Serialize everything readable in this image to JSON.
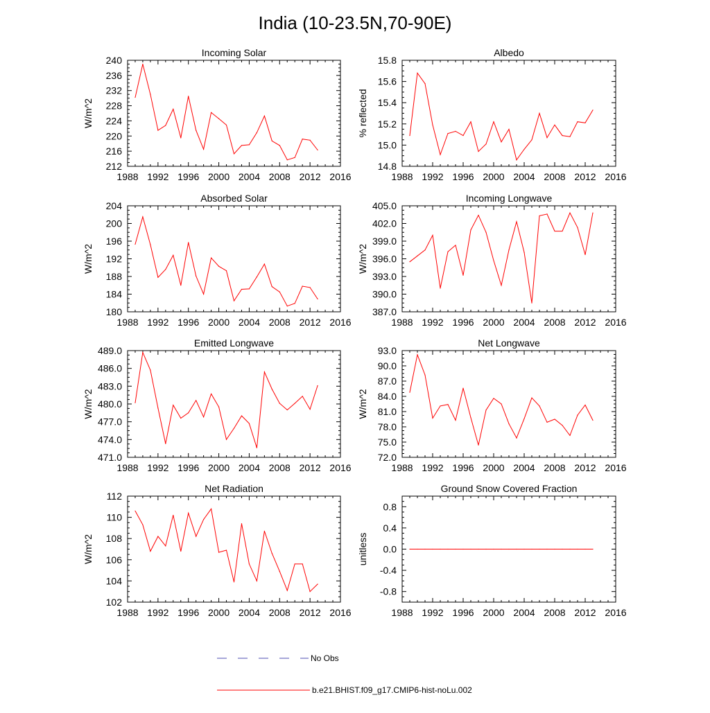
{
  "figure_title": "India (10-23.5N,70-90E)",
  "colors": {
    "model": "#ff0000",
    "obs": "#4d4db3",
    "axis": "#000000"
  },
  "legend": {
    "placement": "bottom-center",
    "entries": [
      {
        "label": "No Obs",
        "style": "dashed",
        "color": "#4d4db3"
      },
      {
        "label": "b.e21.BHIST.f09_g17.CMIP6-hist-noLu.002",
        "style": "solid",
        "color": "#ff0000"
      }
    ]
  },
  "chart_data": [
    {
      "type": "line",
      "title": "Incoming Solar",
      "ylabel": "W/m^2",
      "xlim": [
        1988,
        2016
      ],
      "xticks": [
        1988,
        1992,
        1996,
        2000,
        2004,
        2008,
        2012,
        2016
      ],
      "ylim": [
        212,
        240
      ],
      "yticks": [
        "212",
        "216",
        "220",
        "224",
        "228",
        "232",
        "236",
        "240"
      ],
      "series": [
        {
          "x": [
            1989,
            1990,
            1991,
            1992,
            1993,
            1994,
            1995,
            1996,
            1997,
            1998,
            1999,
            2000,
            2001,
            2002,
            2003,
            2004,
            2005,
            2006,
            2007,
            2008,
            2009,
            2010,
            2011,
            2012,
            2013
          ],
          "values": [
            230.2,
            239.0,
            231.0,
            221.5,
            222.8,
            227.1,
            219.5,
            230.5,
            221.5,
            216.5,
            226.2,
            224.6,
            222.9,
            215.3,
            217.5,
            217.7,
            220.9,
            225.3,
            218.7,
            217.5,
            213.7,
            214.3,
            219.2,
            218.9,
            216.3
          ]
        }
      ]
    },
    {
      "type": "line",
      "title": "Albedo",
      "ylabel": "% reflected",
      "xlim": [
        1988,
        2016
      ],
      "xticks": [
        1988,
        1992,
        1996,
        2000,
        2004,
        2008,
        2012,
        2016
      ],
      "ylim": [
        14.8,
        15.8
      ],
      "yticks": [
        "14.8",
        "15.0",
        "15.2",
        "15.4",
        "15.6",
        "15.8"
      ],
      "series": [
        {
          "x": [
            1989,
            1990,
            1991,
            1992,
            1993,
            1994,
            1995,
            1996,
            1997,
            1998,
            1999,
            2000,
            2001,
            2002,
            2003,
            2004,
            2005,
            2006,
            2007,
            2008,
            2009,
            2010,
            2011,
            2012,
            2013
          ],
          "values": [
            15.09,
            15.68,
            15.58,
            15.19,
            14.91,
            15.11,
            15.13,
            15.09,
            15.22,
            14.94,
            15.01,
            15.22,
            15.03,
            15.15,
            14.86,
            14.96,
            15.05,
            15.3,
            15.07,
            15.19,
            15.09,
            15.08,
            15.22,
            15.21,
            15.33
          ]
        }
      ]
    },
    {
      "type": "line",
      "title": "Absorbed Solar",
      "ylabel": "W/m^2",
      "xlim": [
        1988,
        2016
      ],
      "xticks": [
        1988,
        1992,
        1996,
        2000,
        2004,
        2008,
        2012,
        2016
      ],
      "ylim": [
        180,
        204
      ],
      "yticks": [
        "180",
        "184",
        "188",
        "192",
        "196",
        "200",
        "204"
      ],
      "series": [
        {
          "x": [
            1989,
            1990,
            1991,
            1992,
            1993,
            1994,
            1995,
            1996,
            1997,
            1998,
            1999,
            2000,
            2001,
            2002,
            2003,
            2004,
            2005,
            2006,
            2007,
            2008,
            2009,
            2010,
            2011,
            2012,
            2013
          ],
          "values": [
            195.3,
            201.5,
            195.2,
            187.8,
            189.6,
            192.8,
            186.0,
            195.7,
            188.1,
            184.0,
            192.2,
            190.3,
            189.3,
            182.5,
            185.1,
            185.2,
            187.9,
            190.8,
            185.7,
            184.5,
            181.3,
            181.9,
            185.8,
            185.5,
            182.9
          ]
        }
      ]
    },
    {
      "type": "line",
      "title": "Incoming Longwave",
      "ylabel": "W/m^2",
      "xlim": [
        1988,
        2016
      ],
      "xticks": [
        1988,
        1992,
        1996,
        2000,
        2004,
        2008,
        2012,
        2016
      ],
      "ylim": [
        387.0,
        405.0
      ],
      "yticks": [
        "387.0",
        "390.0",
        "393.0",
        "396.0",
        "399.0",
        "402.0",
        "405.0"
      ],
      "series": [
        {
          "x": [
            1989,
            1990,
            1991,
            1992,
            1993,
            1994,
            1995,
            1996,
            1997,
            1998,
            1999,
            2000,
            2001,
            2002,
            2003,
            2004,
            2005,
            2006,
            2007,
            2008,
            2009,
            2010,
            2011,
            2012,
            2013
          ],
          "values": [
            395.5,
            396.5,
            397.5,
            400.0,
            391.0,
            397.2,
            398.3,
            393.2,
            400.9,
            403.4,
            400.5,
            395.7,
            391.5,
            397.5,
            402.3,
            397.1,
            388.5,
            403.3,
            403.6,
            400.7,
            400.7,
            403.8,
            401.3,
            396.7,
            403.8
          ]
        }
      ]
    },
    {
      "type": "line",
      "title": "Emitted Longwave",
      "ylabel": "W/m^2",
      "xlim": [
        1988,
        2016
      ],
      "xticks": [
        1988,
        1992,
        1996,
        2000,
        2004,
        2008,
        2012,
        2016
      ],
      "ylim": [
        471.0,
        489.0
      ],
      "yticks": [
        "471.0",
        "474.0",
        "477.0",
        "480.0",
        "483.0",
        "486.0",
        "489.0"
      ],
      "series": [
        {
          "x": [
            1989,
            1990,
            1991,
            1992,
            1993,
            1994,
            1995,
            1996,
            1997,
            1998,
            1999,
            2000,
            2001,
            2002,
            2003,
            2004,
            2005,
            2006,
            2007,
            2008,
            2009,
            2010,
            2011,
            2012,
            2013
          ],
          "values": [
            480.2,
            488.7,
            485.7,
            479.3,
            473.3,
            479.8,
            477.6,
            478.5,
            480.6,
            477.8,
            481.7,
            479.5,
            474.0,
            475.9,
            478.0,
            476.7,
            472.6,
            485.4,
            482.5,
            480.1,
            479.0,
            480.1,
            481.3,
            479.1,
            483.1
          ]
        }
      ]
    },
    {
      "type": "line",
      "title": "Net Longwave",
      "ylabel": "W/m^2",
      "xlim": [
        1988,
        2016
      ],
      "xticks": [
        1988,
        1992,
        1996,
        2000,
        2004,
        2008,
        2012,
        2016
      ],
      "ylim": [
        72.0,
        93.0
      ],
      "yticks": [
        "72.0",
        "75.0",
        "78.0",
        "81.0",
        "84.0",
        "87.0",
        "90.0",
        "93.0"
      ],
      "series": [
        {
          "x": [
            1989,
            1990,
            1991,
            1992,
            1993,
            1994,
            1995,
            1996,
            1997,
            1998,
            1999,
            2000,
            2001,
            2002,
            2003,
            2004,
            2005,
            2006,
            2007,
            2008,
            2009,
            2010,
            2011,
            2012,
            2013
          ],
          "values": [
            84.8,
            92.2,
            88.2,
            79.7,
            82.1,
            82.4,
            79.3,
            85.6,
            79.8,
            74.4,
            81.3,
            83.6,
            82.5,
            78.6,
            75.8,
            79.6,
            83.7,
            82.1,
            78.9,
            79.5,
            78.3,
            76.3,
            80.3,
            82.3,
            79.3
          ]
        }
      ]
    },
    {
      "type": "line",
      "title": "Net Radiation",
      "ylabel": "W/m^2",
      "xlim": [
        1988,
        2016
      ],
      "xticks": [
        1988,
        1992,
        1996,
        2000,
        2004,
        2008,
        2012,
        2016
      ],
      "ylim": [
        102,
        112
      ],
      "yticks": [
        "102",
        "104",
        "106",
        "108",
        "110",
        "112"
      ],
      "series": [
        {
          "x": [
            1989,
            1990,
            1991,
            1992,
            1993,
            1994,
            1995,
            1996,
            1997,
            1998,
            1999,
            2000,
            2001,
            2002,
            2003,
            2004,
            2005,
            2006,
            2007,
            2008,
            2009,
            2010,
            2011,
            2012,
            2013
          ],
          "values": [
            110.6,
            109.3,
            106.8,
            108.2,
            107.3,
            110.2,
            106.8,
            110.4,
            108.2,
            109.8,
            110.8,
            106.7,
            106.9,
            103.9,
            109.4,
            105.6,
            104.0,
            108.7,
            106.6,
            104.9,
            103.1,
            105.6,
            105.6,
            103.0,
            103.7
          ]
        }
      ]
    },
    {
      "type": "line",
      "title": "Ground Snow Covered Fraction",
      "ylabel": "unitless",
      "xlim": [
        1988,
        2016
      ],
      "xticks": [
        1988,
        1992,
        1996,
        2000,
        2004,
        2008,
        2012,
        2016
      ],
      "ylim": [
        -1.0,
        1.0
      ],
      "yticks": [
        "-0.8",
        "-0.4",
        "0.0",
        "0.4",
        "0.8"
      ],
      "series": [
        {
          "x": [
            1989,
            1990,
            1991,
            1992,
            1993,
            1994,
            1995,
            1996,
            1997,
            1998,
            1999,
            2000,
            2001,
            2002,
            2003,
            2004,
            2005,
            2006,
            2007,
            2008,
            2009,
            2010,
            2011,
            2012,
            2013
          ],
          "values": [
            0,
            0,
            0,
            0,
            0,
            0,
            0,
            0,
            0,
            0,
            0,
            0,
            0,
            0,
            0,
            0,
            0,
            0,
            0,
            0,
            0,
            0,
            0,
            0,
            0
          ]
        }
      ]
    }
  ]
}
